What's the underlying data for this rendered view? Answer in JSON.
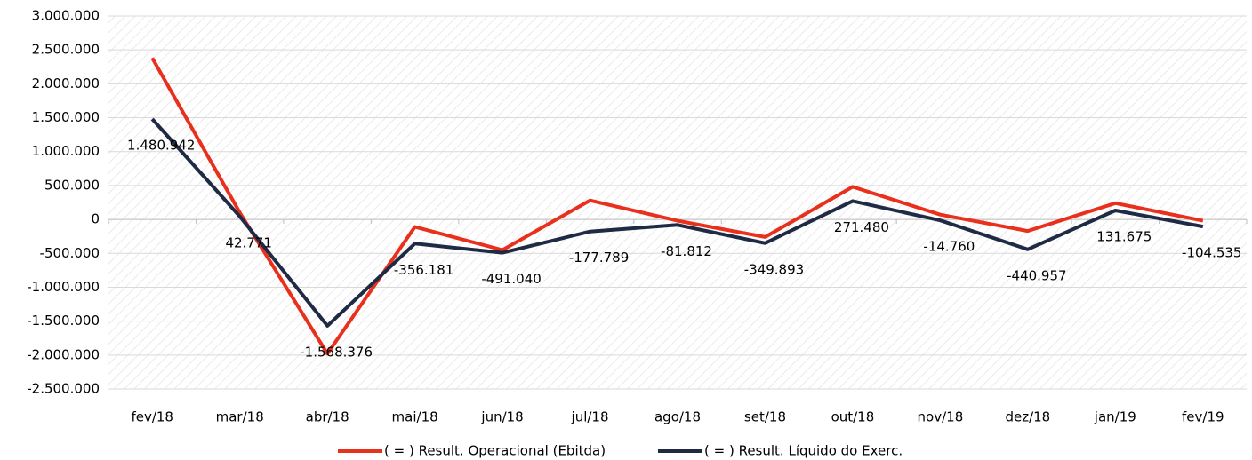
{
  "chart_data": {
    "type": "line",
    "categories": [
      "fev/18",
      "mar/18",
      "abr/18",
      "mai/18",
      "jun/18",
      "jul/18",
      "ago/18",
      "set/18",
      "out/18",
      "nov/18",
      "dez/18",
      "jan/19",
      "fev/19"
    ],
    "series": [
      {
        "name": "( = ) Result. Operacional (Ebitda)",
        "color": "#e8301c",
        "values": [
          2380000,
          100000,
          -1980000,
          -110000,
          -450000,
          280000,
          -20000,
          -260000,
          480000,
          70000,
          -170000,
          240000,
          -20000
        ]
      },
      {
        "name": "( = ) Result. Líquido do Exerc.",
        "color": "#1f2a44",
        "values": [
          1480942,
          42771,
          -1568376,
          -356181,
          -491040,
          -177789,
          -81812,
          -349893,
          271480,
          -14760,
          -440957,
          131675,
          -104535
        ],
        "value_labels": [
          "1.480.942",
          "42.771",
          "-1.568.376",
          "-356.181",
          "-491.040",
          "-177.789",
          "-81.812",
          "-349.893",
          "271.480",
          "-14.760",
          "-440.957",
          "131.675",
          "-104.535"
        ]
      }
    ],
    "ylim": [
      -2500000,
      3000000
    ],
    "yticks": [
      {
        "value": -2500000,
        "label": "-2.500.000"
      },
      {
        "value": -2000000,
        "label": "-2.000.000"
      },
      {
        "value": -1500000,
        "label": "-1.500.000"
      },
      {
        "value": -1000000,
        "label": "-1.000.000"
      },
      {
        "value": -500000,
        "label": "-500.000"
      },
      0,
      {
        "value": 500000,
        "label": "500.000"
      },
      {
        "value": 1000000,
        "label": "1.000.000"
      },
      {
        "value": 1500000,
        "label": "1.500.000"
      },
      {
        "value": 2000000,
        "label": "2.000.000"
      },
      {
        "value": 2500000,
        "label": "2.500.000"
      },
      {
        "value": 3000000,
        "label": "3.000.000"
      }
    ],
    "grid": true
  }
}
